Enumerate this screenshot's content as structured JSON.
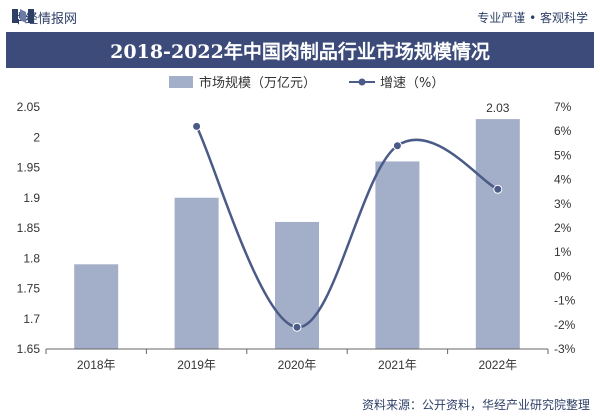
{
  "header": {
    "brand": "华经情报网",
    "tagline": "专业严谨 • 客观科学"
  },
  "footer": {
    "source": "资料来源：公开资料，华经产业研究院整理"
  },
  "colors": {
    "bar": "#a3aec8",
    "line": "#4b5b87",
    "title_bg": "#3c4b79"
  },
  "chart_data": {
    "type": "bar",
    "title": "2018-2022年中国肉制品行业市场规模情况",
    "categories": [
      "2018年",
      "2019年",
      "2020年",
      "2021年",
      "2022年"
    ],
    "series": [
      {
        "name": "市场规模（万亿元）",
        "type": "bar",
        "axis": "left",
        "values": [
          1.79,
          1.9,
          1.86,
          1.96,
          2.03
        ]
      },
      {
        "name": "增速（%）",
        "type": "line",
        "axis": "right",
        "values": [
          null,
          6.2,
          -2.1,
          5.4,
          3.6
        ]
      }
    ],
    "data_labels": [
      null,
      null,
      null,
      null,
      "2.03"
    ],
    "y_left": {
      "min": 1.65,
      "max": 2.05,
      "ticks": [
        "1.65",
        "1.7",
        "1.75",
        "1.8",
        "1.85",
        "1.9",
        "1.95",
        "2",
        "2.05"
      ]
    },
    "y_right": {
      "min": -3,
      "max": 7,
      "ticks": [
        "-3%",
        "-2%",
        "-1%",
        "0%",
        "1%",
        "2%",
        "3%",
        "4%",
        "5%",
        "6%",
        "7%"
      ]
    },
    "legend_position": "top-center",
    "grid": false
  }
}
